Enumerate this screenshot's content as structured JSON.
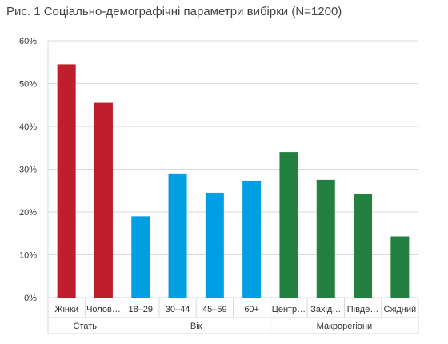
{
  "chart_data": {
    "type": "bar",
    "title": "Рис. 1 Соціально-демографічні параметри вибірки (N=1200)",
    "ylim": [
      0,
      60
    ],
    "yticks": [
      "0%",
      "10%",
      "20%",
      "30%",
      "40%",
      "50%",
      "60%"
    ],
    "grid": true,
    "legend": "none",
    "categories": [
      "Жінки",
      "Чолов…",
      "18–29",
      "30–44",
      "45–59",
      "60+",
      "Центр…",
      "Захід…",
      "Півде…",
      "Східний"
    ],
    "values": [
      54.5,
      45.5,
      19,
      29,
      24.5,
      27.3,
      34,
      27.5,
      24.3,
      14.3
    ],
    "groups": [
      {
        "label": "Стать",
        "count": 2,
        "color": "#be1e2d"
      },
      {
        "label": "Вік",
        "count": 4,
        "color": "#009fe3"
      },
      {
        "label": "Макрорегіони",
        "count": 4,
        "color": "#238140"
      }
    ]
  }
}
